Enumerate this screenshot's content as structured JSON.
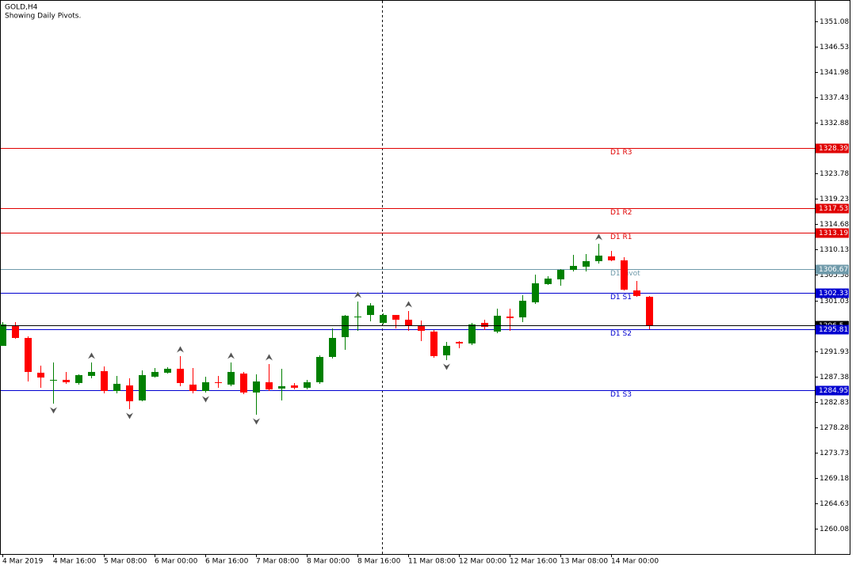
{
  "chart_data": {
    "type": "candlestick",
    "title": "GOLD,H4",
    "subtitle": "Showing Daily Pivots.",
    "categories": [
      "4 Mar 2019",
      null,
      null,
      null,
      "4 Mar 16:00",
      null,
      null,
      null,
      "5 Mar 08:00",
      null,
      null,
      null,
      "6 Mar 00:00",
      null,
      null,
      null,
      "6 Mar 16:00",
      null,
      null,
      null,
      "7 Mar 08:00",
      null,
      null,
      null,
      "8 Mar 00:00",
      null,
      null,
      null,
      "8 Mar 16:00",
      null,
      null,
      null,
      "11 Mar 08:00",
      null,
      null,
      null,
      "12 Mar 00:00",
      null,
      null,
      null,
      "12 Mar 16:00",
      null,
      null,
      null,
      "13 Mar 08:00",
      null,
      null,
      null,
      "14 Mar 00:00",
      null,
      null,
      null
    ],
    "open": [
      1292.87,
      1296.56,
      1294.29,
      1288.05,
      1286.77,
      1286.77,
      1286.2,
      1287.48,
      1288.33,
      1284.78,
      1285.77,
      1283.08,
      1287.34,
      1288.05,
      1288.76,
      1285.92,
      1284.78,
      1286.34,
      1285.92,
      1287.9,
      1284.5,
      1286.34,
      1285.21,
      1285.77,
      1285.35,
      1286.34,
      1290.88,
      1294.43,
      1298.13,
      1298.41,
      1296.99,
      1298.41,
      1297.56,
      1296.56,
      1295.43,
      1291.17,
      1293.58,
      1293.3,
      1296.99,
      1295.43,
      1298.13,
      1297.98,
      1300.68,
      1303.95,
      1304.8,
      1306.5,
      1307.07,
      1308.06,
      1308.92,
      1308.21,
      1302.81,
      1301.67
    ],
    "high": [
      1297.13,
      1297.13,
      1294.58,
      1289.32,
      1289.89,
      1288.19,
      1287.76,
      1289.89,
      1289.18,
      1287.48,
      1287.05,
      1288.47,
      1288.9,
      1289.04,
      1291.03,
      1288.9,
      1287.34,
      1287.48,
      1289.89,
      1288.19,
      1287.76,
      1289.61,
      1288.76,
      1286.2,
      1286.77,
      1291.17,
      1296.0,
      1298.41,
      1300.82,
      1300.54,
      1298.69,
      1298.41,
      1299.12,
      1297.42,
      1295.71,
      1293.58,
      1293.72,
      1296.99,
      1297.56,
      1299.54,
      1299.54,
      1301.96,
      1305.65,
      1305.37,
      1306.64,
      1309.2,
      1309.34,
      1311.19,
      1309.91,
      1308.77,
      1304.51,
      1301.82
    ],
    "low": [
      1292.87,
      1294.15,
      1286.48,
      1285.35,
      1282.51,
      1286.06,
      1285.92,
      1287.05,
      1284.35,
      1284.35,
      1281.51,
      1282.93,
      1287.19,
      1287.9,
      1285.63,
      1284.35,
      1284.5,
      1285.35,
      1285.63,
      1284.21,
      1280.52,
      1284.78,
      1283.08,
      1285.06,
      1285.06,
      1286.06,
      1290.6,
      1292.16,
      1295.57,
      1297.27,
      1296.71,
      1296.0,
      1295.57,
      1293.72,
      1290.74,
      1290.32,
      1292.45,
      1293.01,
      1295.71,
      1295.14,
      1295.57,
      1297.13,
      1300.4,
      1303.8,
      1303.66,
      1306.22,
      1306.22,
      1307.64,
      1308.06,
      1302.81,
      1301.67,
      1295.85
    ],
    "close": [
      1296.71,
      1294.29,
      1288.19,
      1287.19,
      1286.77,
      1286.34,
      1287.62,
      1288.19,
      1284.78,
      1286.06,
      1282.93,
      1287.62,
      1288.19,
      1288.76,
      1286.2,
      1284.78,
      1286.34,
      1286.2,
      1288.19,
      1284.5,
      1286.48,
      1285.06,
      1285.63,
      1285.35,
      1286.34,
      1290.88,
      1294.29,
      1298.27,
      1298.13,
      1300.11,
      1298.41,
      1297.56,
      1296.42,
      1295.57,
      1291.03,
      1292.87,
      1293.3,
      1296.71,
      1296.28,
      1298.27,
      1297.84,
      1300.96,
      1304.09,
      1304.94,
      1306.5,
      1307.21,
      1308.06,
      1309.06,
      1308.21,
      1302.95,
      1301.82,
      1296.5
    ],
    "up_color": "#008000",
    "down_color": "#ff0000",
    "ylim": [
      1255.53,
      1354.91
    ],
    "yticks": [
      1351.08,
      1346.53,
      1341.98,
      1337.43,
      1332.88,
      1328.33,
      1323.78,
      1319.23,
      1314.68,
      1310.13,
      1305.58,
      1301.03,
      1291.93,
      1287.38,
      1282.83,
      1278.28,
      1273.73,
      1269.18,
      1264.63,
      1260.08
    ],
    "pivots": [
      {
        "name": "D1 R3",
        "value": 1328.39,
        "color": "#e00000"
      },
      {
        "name": "D1 R2",
        "value": 1317.53,
        "color": "#e00000"
      },
      {
        "name": "D1 R1",
        "value": 1313.19,
        "color": "#e00000"
      },
      {
        "name": "D1 Pivot",
        "value": 1306.67,
        "color": "#6f9aaa"
      },
      {
        "name": "D1 S1",
        "value": 1302.33,
        "color": "#0000d0"
      },
      {
        "name": "D1 S2",
        "value": 1295.81,
        "color": "#0000d0"
      },
      {
        "name": "D1 S3",
        "value": 1284.95,
        "color": "#0000d0"
      }
    ],
    "bid": 1296.5,
    "fractals_up": [
      7,
      14,
      18,
      21,
      28,
      32,
      47
    ],
    "fractals_down": [
      4,
      10,
      16,
      20,
      35
    ]
  }
}
